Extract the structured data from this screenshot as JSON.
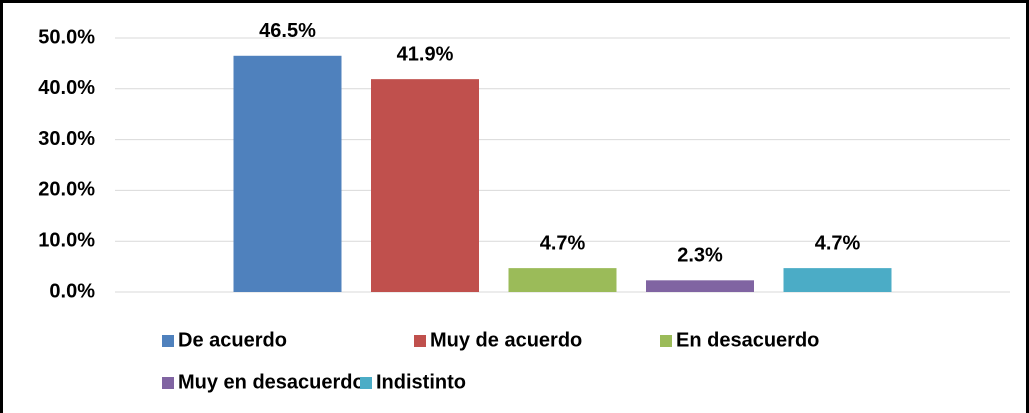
{
  "chart_data": {
    "type": "bar",
    "categories": [
      null
    ],
    "series": [
      {
        "name": "De acuerdo",
        "color": "#4f81bd",
        "values": [
          46.5
        ],
        "value_labels": [
          "46.5%"
        ]
      },
      {
        "name": "Muy de acuerdo",
        "color": "#c0504d",
        "values": [
          41.9
        ],
        "value_labels": [
          "41.9%"
        ]
      },
      {
        "name": "En desacuerdo",
        "color": "#9bbb59",
        "values": [
          4.7
        ],
        "value_labels": [
          "4.7%"
        ]
      },
      {
        "name": "Muy en desacuerdo",
        "color": "#8064a2",
        "values": [
          2.3
        ],
        "value_labels": [
          "2.3%"
        ]
      },
      {
        "name": "Indistinto",
        "color": "#4bacc6",
        "values": [
          4.7
        ],
        "value_labels": [
          "4.7%"
        ]
      }
    ],
    "ylim": [
      0,
      50
    ],
    "yticks": [
      {
        "value": 0,
        "label": "0.0%"
      },
      {
        "value": 10,
        "label": "10.0%"
      },
      {
        "value": 20,
        "label": "20.0%"
      },
      {
        "value": 30,
        "label": "30.0%"
      },
      {
        "value": 40,
        "label": "40.0%"
      },
      {
        "value": 50,
        "label": "50.0%"
      }
    ],
    "grid": true,
    "legend": "bottom"
  }
}
